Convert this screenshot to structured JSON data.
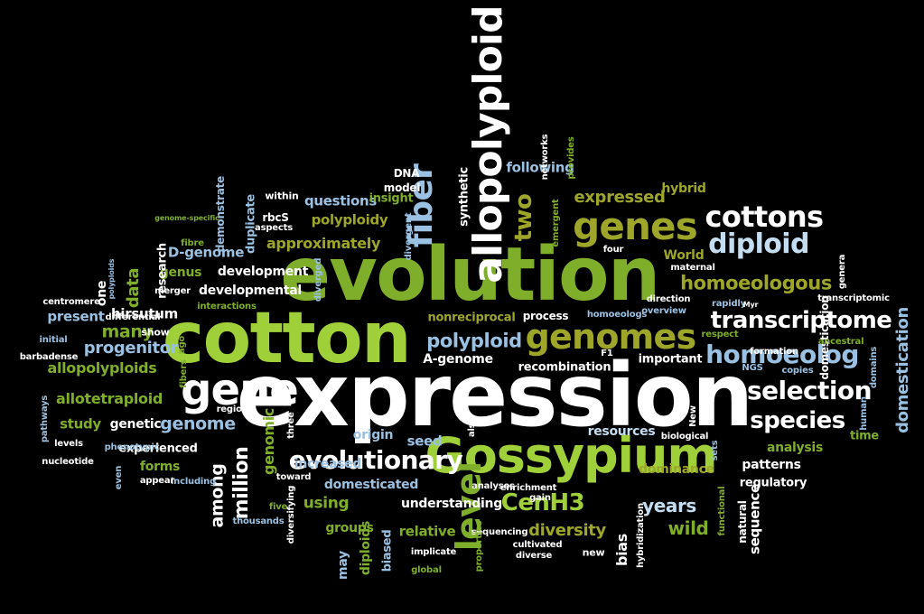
{
  "colors": {
    "background": "#000000",
    "lime": "#9fd03a",
    "green": "#7fae2a",
    "dark_green": "#6aa524",
    "white": "#ffffff",
    "light_blue": "#c4ddf0",
    "blue": "#9ac0e2",
    "olive": "#9ea62a"
  },
  "words": [
    {
      "t": "expression",
      "c": "wh"
    },
    {
      "t": "evolution",
      "c": "dg"
    },
    {
      "t": "cotton",
      "c": "lg"
    },
    {
      "t": "Gossypium",
      "c": "lg"
    },
    {
      "t": "allopolyploid",
      "c": "wh"
    },
    {
      "t": "gene",
      "c": "wh"
    },
    {
      "t": "genomes",
      "c": "ol"
    },
    {
      "t": "genes",
      "c": "ol"
    },
    {
      "t": "fiber",
      "c": "bl"
    },
    {
      "t": "level",
      "c": "dg"
    },
    {
      "t": "cottons",
      "c": "wh"
    },
    {
      "t": "diploid",
      "c": "lb"
    },
    {
      "t": "homoeolog",
      "c": "bl"
    },
    {
      "t": "transcriptome",
      "c": "wh"
    },
    {
      "t": "selection",
      "c": "wh"
    },
    {
      "t": "species",
      "c": "wh"
    },
    {
      "t": "evolutionary",
      "c": "wh"
    },
    {
      "t": "two",
      "c": "ol"
    },
    {
      "t": "homoeologous",
      "c": "ol"
    },
    {
      "t": "CenH3",
      "c": "lg"
    },
    {
      "t": "polyploid",
      "c": "bl"
    },
    {
      "t": "genome",
      "c": "bl"
    },
    {
      "t": "expressed",
      "c": "ol"
    },
    {
      "t": "million",
      "c": "wh"
    },
    {
      "t": "among",
      "c": "wh"
    },
    {
      "t": "years",
      "c": "lb"
    },
    {
      "t": "wild",
      "c": "dg"
    },
    {
      "t": "diversity",
      "c": "ol"
    },
    {
      "t": "many",
      "c": "dg"
    },
    {
      "t": "domestication",
      "c": "bl"
    },
    {
      "t": "domestication",
      "c": "wh"
    },
    {
      "t": "progenitor",
      "c": "bl"
    },
    {
      "t": "genomic",
      "c": "dg"
    },
    {
      "t": "allopolyploids",
      "c": "dg"
    },
    {
      "t": "allotetraploid",
      "c": "dg"
    },
    {
      "t": "approximately",
      "c": "ol"
    },
    {
      "t": "data",
      "c": "dg"
    },
    {
      "t": "hirsutum",
      "c": "wh"
    },
    {
      "t": "following",
      "c": "bl"
    },
    {
      "t": "polyploidy",
      "c": "ol"
    },
    {
      "t": "questions",
      "c": "bl"
    },
    {
      "t": "D-genome",
      "c": "bl"
    },
    {
      "t": "developmental",
      "c": "wh"
    },
    {
      "t": "development",
      "c": "wh"
    },
    {
      "t": "genus",
      "c": "dg"
    },
    {
      "t": "research",
      "c": "wh"
    },
    {
      "t": "one",
      "c": "wh"
    },
    {
      "t": "present",
      "c": "bl"
    },
    {
      "t": "study",
      "c": "dg"
    },
    {
      "t": "genetic",
      "c": "wh"
    },
    {
      "t": "experienced",
      "c": "wh"
    },
    {
      "t": "forms",
      "c": "dg"
    },
    {
      "t": "using",
      "c": "dg"
    },
    {
      "t": "domesticated",
      "c": "bl"
    },
    {
      "t": "understanding",
      "c": "wh"
    },
    {
      "t": "increased",
      "c": "bl"
    },
    {
      "t": "origin",
      "c": "bl"
    },
    {
      "t": "seed",
      "c": "bl"
    },
    {
      "t": "resources",
      "c": "lb"
    },
    {
      "t": "A-genome",
      "c": "wh"
    },
    {
      "t": "nonreciprocal",
      "c": "ol"
    },
    {
      "t": "process",
      "c": "wh"
    },
    {
      "t": "recombination",
      "c": "wh"
    },
    {
      "t": "important",
      "c": "wh"
    },
    {
      "t": "analysis",
      "c": "dg"
    },
    {
      "t": "patterns",
      "c": "wh"
    },
    {
      "t": "regulatory",
      "c": "wh"
    },
    {
      "t": "dominance",
      "c": "ol"
    },
    {
      "t": "time",
      "c": "dg"
    },
    {
      "t": "relative",
      "c": "dg"
    },
    {
      "t": "groups",
      "c": "dg"
    },
    {
      "t": "diploids",
      "c": "dg"
    },
    {
      "t": "biased",
      "c": "bl"
    },
    {
      "t": "may",
      "c": "bl"
    },
    {
      "t": "bias",
      "c": "wh"
    },
    {
      "t": "sequence",
      "c": "wh"
    },
    {
      "t": "natural",
      "c": "wh"
    },
    {
      "t": "World",
      "c": "ol"
    },
    {
      "t": "hybrid",
      "c": "ol"
    },
    {
      "t": "synthetic",
      "c": "wh"
    },
    {
      "t": "DNA",
      "c": "wh"
    },
    {
      "t": "insight",
      "c": "dg"
    },
    {
      "t": "model",
      "c": "wh"
    },
    {
      "t": "duplicate",
      "c": "bl"
    },
    {
      "t": "demonstrate",
      "c": "bl"
    },
    {
      "t": "rbcS",
      "c": "wh"
    },
    {
      "t": "within",
      "c": "wh"
    },
    {
      "t": "merger",
      "c": "wh"
    },
    {
      "t": "differential",
      "c": "wh"
    },
    {
      "t": "show",
      "c": "wh"
    },
    {
      "t": "interactions",
      "c": "dg"
    },
    {
      "t": "centromere",
      "c": "wh"
    },
    {
      "t": "initial",
      "c": "bl"
    },
    {
      "t": "barbadense",
      "c": "wh"
    },
    {
      "t": "pathways",
      "c": "bl"
    },
    {
      "t": "levels",
      "c": "wh"
    },
    {
      "t": "phenotypic",
      "c": "bl"
    },
    {
      "t": "nucleotide",
      "c": "wh"
    },
    {
      "t": "including",
      "c": "bl"
    },
    {
      "t": "appear",
      "c": "wh"
    },
    {
      "t": "even",
      "c": "bl"
    },
    {
      "t": "thousands",
      "c": "bl"
    },
    {
      "t": "five",
      "c": "dg"
    },
    {
      "t": "toward",
      "c": "wh"
    },
    {
      "t": "diversifying",
      "c": "wh"
    },
    {
      "t": "regions",
      "c": "wh"
    },
    {
      "t": "three",
      "c": "wh"
    },
    {
      "t": "also",
      "c": "wh"
    },
    {
      "t": "analyses",
      "c": "wh"
    },
    {
      "t": "enrichment",
      "c": "wh"
    },
    {
      "t": "gain",
      "c": "wh"
    },
    {
      "t": "sequencing",
      "c": "wh"
    },
    {
      "t": "cultivated",
      "c": "wh"
    },
    {
      "t": "implicate",
      "c": "wh"
    },
    {
      "t": "global",
      "c": "dg"
    },
    {
      "t": "properties",
      "c": "dg"
    },
    {
      "t": "diverse",
      "c": "wh"
    },
    {
      "t": "new",
      "c": "wh"
    },
    {
      "t": "hybridization",
      "c": "wh"
    },
    {
      "t": "functional",
      "c": "dg"
    },
    {
      "t": "biological",
      "c": "wh"
    },
    {
      "t": "New",
      "c": "wh"
    },
    {
      "t": "human",
      "c": "bl"
    },
    {
      "t": "sets",
      "c": "bl"
    },
    {
      "t": "copies",
      "c": "bl"
    },
    {
      "t": "NGS",
      "c": "bl"
    },
    {
      "t": "respect",
      "c": "dg"
    },
    {
      "t": "formation",
      "c": "wh"
    },
    {
      "t": "ancestral",
      "c": "dg"
    },
    {
      "t": "domains",
      "c": "bl"
    },
    {
      "t": "transcriptomic",
      "c": "wh"
    },
    {
      "t": "genera",
      "c": "wh"
    },
    {
      "t": "direction",
      "c": "wh"
    },
    {
      "t": "rapidly",
      "c": "bl"
    },
    {
      "t": "Myr",
      "c": "wh"
    },
    {
      "t": "maternal",
      "c": "wh"
    },
    {
      "t": "four",
      "c": "wh"
    },
    {
      "t": "provides",
      "c": "dg"
    },
    {
      "t": "networks",
      "c": "wh"
    },
    {
      "t": "emergent",
      "c": "dg"
    },
    {
      "t": "divergent",
      "c": "bl"
    },
    {
      "t": "diverged",
      "c": "bl"
    },
    {
      "t": "genome-specific",
      "c": "dg"
    },
    {
      "t": "fibre",
      "c": "dg"
    },
    {
      "t": "polyploids",
      "c": "bl"
    },
    {
      "t": "aspects",
      "c": "wh"
    },
    {
      "t": "overview",
      "c": "bl"
    },
    {
      "t": "homoeologs",
      "c": "bl"
    },
    {
      "t": "F1",
      "c": "wh"
    },
    {
      "t": "ago",
      "c": "dg"
    },
    {
      "t": "fibers",
      "c": "dg"
    }
  ]
}
